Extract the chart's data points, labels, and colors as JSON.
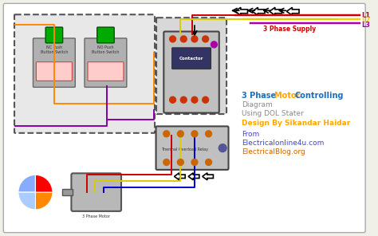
{
  "bg_color": "#f0f0e8",
  "title_parts": [
    {
      "text": "3 Phase ",
      "color": "#1a6fbd",
      "bold": true
    },
    {
      "text": "Motor ",
      "color": "#ffa500",
      "bold": true
    },
    {
      "text": "Controlling",
      "color": "#1a6fbd",
      "bold": true
    }
  ],
  "line2": {
    "text": "Diagram",
    "color": "#888888"
  },
  "line3": {
    "text": "Using DOL Stater",
    "color": "#888888"
  },
  "line4": {
    "text": "Design By Sikandar Haidar",
    "color": "#ffa500",
    "bold": true
  },
  "line5": {
    "text": "From",
    "color": "#4444cc"
  },
  "line6": {
    "text": "Electricalonline4u.com",
    "color": "#4444cc"
  },
  "line7": {
    "text": "ElectricalBlog.org",
    "color": "#cc6600"
  },
  "supply_label": "3 Phase Supply",
  "supply_color": "#cc0000",
  "L1_color": "#cc0000",
  "L2_color": "#ffcc00",
  "L3_color": "#aa00aa",
  "wire_red": "#cc0000",
  "wire_yellow": "#ddcc00",
  "wire_blue": "#0000cc",
  "wire_orange": "#ff8800",
  "wire_purple": "#8800aa",
  "wire_green": "#00aa00"
}
